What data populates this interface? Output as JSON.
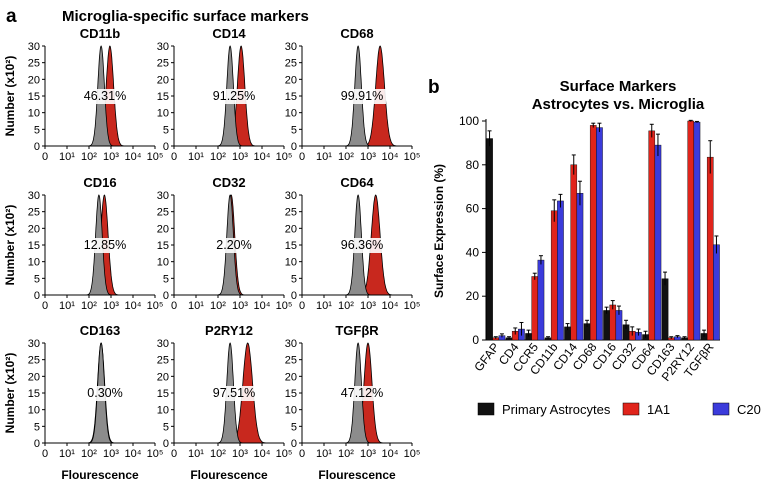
{
  "panel_a": {
    "letter": "a",
    "title": "Microglia-specific surface markers",
    "ylabel": "Number (x10²)",
    "xlabel": "Flourescence",
    "yticks": [
      0,
      5,
      10,
      15,
      20,
      25,
      30
    ],
    "xticks": [
      "0",
      "10¹",
      "10²",
      "10³",
      "10⁴",
      "10⁵"
    ],
    "colors": {
      "control": "#8c8c8c",
      "stained": "#c8281e"
    },
    "histograms": [
      {
        "marker": "CD11b",
        "percent": "46.31%",
        "control_peak_log": 2.55,
        "stained_peak_log": 2.95,
        "stained_width": 0.17
      },
      {
        "marker": "CD14",
        "percent": "91.25%",
        "control_peak_log": 2.55,
        "stained_peak_log": 3.05,
        "stained_width": 0.17
      },
      {
        "marker": "CD68",
        "percent": "99.91%",
        "control_peak_log": 2.55,
        "stained_peak_log": 3.55,
        "stained_width": 0.2
      },
      {
        "marker": "CD16",
        "percent": "12.85%",
        "control_peak_log": 2.45,
        "stained_peak_log": 2.7,
        "stained_width": 0.17
      },
      {
        "marker": "CD32",
        "percent": "2.20%",
        "control_peak_log": 2.55,
        "stained_peak_log": 2.6,
        "stained_width": 0.16
      },
      {
        "marker": "CD64",
        "percent": "96.36%",
        "control_peak_log": 2.55,
        "stained_peak_log": 3.35,
        "stained_width": 0.2
      },
      {
        "marker": "CD163",
        "percent": "0.30%",
        "control_peak_log": 2.55,
        "stained_peak_log": 2.55,
        "stained_width": 0.16
      },
      {
        "marker": "P2RY12",
        "percent": "97.51%",
        "control_peak_log": 2.55,
        "stained_peak_log": 3.35,
        "stained_width": 0.22
      },
      {
        "marker": "TGFβR",
        "percent": "47.12%",
        "control_peak_log": 2.55,
        "stained_peak_log": 3.0,
        "stained_width": 0.18
      }
    ]
  },
  "chart_data": {
    "type": "bar",
    "panel": "b",
    "title": "Surface Markers",
    "subtitle": "Astrocytes vs. Microglia",
    "xlabel": "",
    "ylabel": "Surface Expression (%)",
    "ylim": [
      0,
      100
    ],
    "yticks": [
      0,
      20,
      40,
      60,
      80,
      100
    ],
    "categories": [
      "GFAP",
      "CD4",
      "CCR5",
      "CD11b",
      "CD14",
      "CD68",
      "CD16",
      "CD32",
      "CD64",
      "CD163",
      "P2RY12",
      "TGFβR"
    ],
    "series": [
      {
        "name": "Primary Astrocytes",
        "color": "#111111",
        "values": [
          92,
          1,
          3,
          1,
          6,
          7.5,
          13.5,
          7,
          2.5,
          28,
          1,
          3
        ],
        "errors": [
          3.5,
          0.5,
          1.5,
          0.5,
          1.5,
          1.5,
          1.5,
          2,
          1.5,
          3,
          0.5,
          1.5
        ]
      },
      {
        "name": "1A1",
        "color": "#e0241b",
        "values": [
          1,
          4,
          29,
          59,
          80,
          98,
          16,
          4,
          95.5,
          1,
          100,
          83.5
        ],
        "errors": [
          0.5,
          1.5,
          1.5,
          5,
          4.5,
          1,
          2,
          2,
          3,
          0.5,
          0.3,
          7.5
        ]
      },
      {
        "name": "C20",
        "color": "#3b3bdb",
        "values": [
          2,
          5,
          36.5,
          63.5,
          67,
          97,
          13.5,
          3.5,
          89,
          1.5,
          99.5,
          43.5
        ],
        "errors": [
          0.8,
          3,
          2,
          3,
          5.5,
          2,
          2,
          1.5,
          5,
          0.5,
          0.3,
          4
        ]
      }
    ],
    "legend_position": "bottom"
  }
}
